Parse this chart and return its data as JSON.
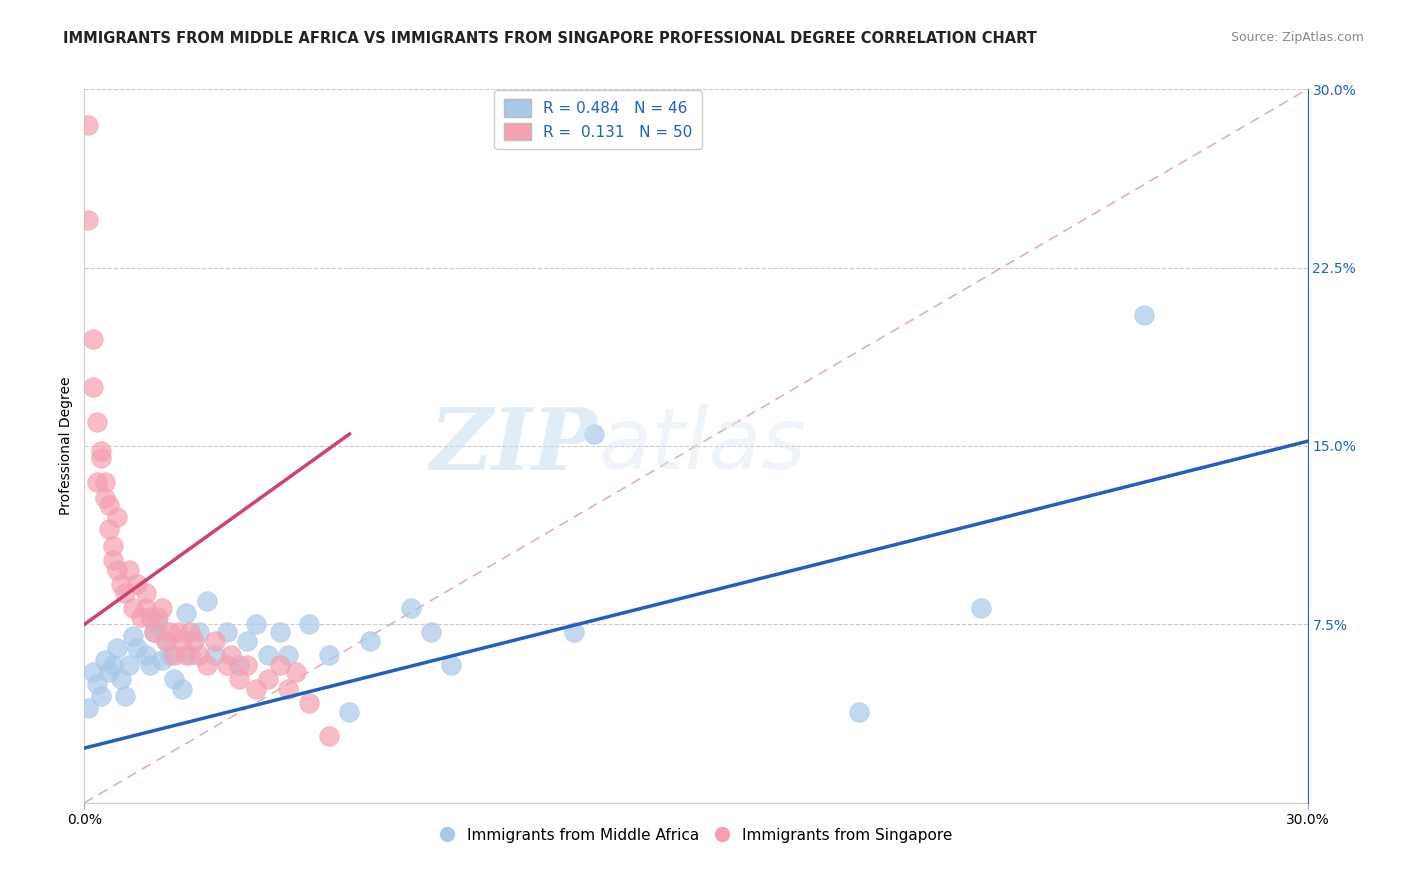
{
  "title": "IMMIGRANTS FROM MIDDLE AFRICA VS IMMIGRANTS FROM SINGAPORE PROFESSIONAL DEGREE CORRELATION CHART",
  "source": "Source: ZipAtlas.com",
  "ylabel": "Professional Degree",
  "x_min": 0.0,
  "x_max": 0.3,
  "y_min": 0.0,
  "y_max": 0.3,
  "blue_R": 0.484,
  "blue_N": 46,
  "pink_R": 0.131,
  "pink_N": 50,
  "blue_color": "#a8c8e8",
  "pink_color": "#f4a0b0",
  "blue_line_color": "#2060c0",
  "pink_line_color": "#d04070",
  "diag_line_color": "#e0b0c0",
  "watermark_zip": "ZIP",
  "watermark_atlas": "atlas",
  "title_fontsize": 10.5,
  "axis_label_fontsize": 10,
  "tick_fontsize": 10,
  "legend_fontsize": 11,
  "blue_scatter_x": [
    0.001,
    0.002,
    0.003,
    0.004,
    0.005,
    0.006,
    0.007,
    0.008,
    0.009,
    0.01,
    0.011,
    0.012,
    0.013,
    0.015,
    0.016,
    0.017,
    0.018,
    0.019,
    0.02,
    0.021,
    0.022,
    0.024,
    0.025,
    0.026,
    0.028,
    0.03,
    0.032,
    0.035,
    0.038,
    0.04,
    0.042,
    0.045,
    0.048,
    0.05,
    0.055,
    0.06,
    0.065,
    0.07,
    0.08,
    0.085,
    0.09,
    0.12,
    0.125,
    0.19,
    0.22,
    0.26
  ],
  "blue_scatter_y": [
    0.04,
    0.055,
    0.05,
    0.045,
    0.06,
    0.055,
    0.058,
    0.065,
    0.052,
    0.045,
    0.058,
    0.07,
    0.065,
    0.062,
    0.058,
    0.072,
    0.075,
    0.06,
    0.068,
    0.062,
    0.052,
    0.048,
    0.08,
    0.062,
    0.072,
    0.085,
    0.062,
    0.072,
    0.058,
    0.068,
    0.075,
    0.062,
    0.072,
    0.062,
    0.075,
    0.062,
    0.038,
    0.068,
    0.082,
    0.072,
    0.058,
    0.072,
    0.155,
    0.038,
    0.082,
    0.205
  ],
  "pink_scatter_x": [
    0.001,
    0.001,
    0.002,
    0.002,
    0.003,
    0.003,
    0.004,
    0.004,
    0.005,
    0.005,
    0.006,
    0.006,
    0.007,
    0.007,
    0.008,
    0.008,
    0.009,
    0.01,
    0.011,
    0.012,
    0.013,
    0.014,
    0.015,
    0.015,
    0.016,
    0.017,
    0.018,
    0.019,
    0.02,
    0.021,
    0.022,
    0.023,
    0.024,
    0.025,
    0.026,
    0.027,
    0.028,
    0.03,
    0.032,
    0.035,
    0.036,
    0.038,
    0.04,
    0.042,
    0.045,
    0.048,
    0.05,
    0.052,
    0.055,
    0.06
  ],
  "pink_scatter_y": [
    0.285,
    0.245,
    0.195,
    0.175,
    0.135,
    0.16,
    0.145,
    0.148,
    0.135,
    0.128,
    0.115,
    0.125,
    0.108,
    0.102,
    0.098,
    0.12,
    0.092,
    0.088,
    0.098,
    0.082,
    0.092,
    0.078,
    0.082,
    0.088,
    0.078,
    0.072,
    0.078,
    0.082,
    0.068,
    0.072,
    0.062,
    0.072,
    0.068,
    0.062,
    0.072,
    0.068,
    0.062,
    0.058,
    0.068,
    0.058,
    0.062,
    0.052,
    0.058,
    0.048,
    0.052,
    0.058,
    0.048,
    0.055,
    0.042,
    0.028
  ],
  "blue_line_x0": 0.0,
  "blue_line_y0": 0.023,
  "blue_line_x1": 0.3,
  "blue_line_y1": 0.152,
  "pink_line_x0": 0.0,
  "pink_line_y0": 0.075,
  "pink_line_x1": 0.065,
  "pink_line_y1": 0.155
}
